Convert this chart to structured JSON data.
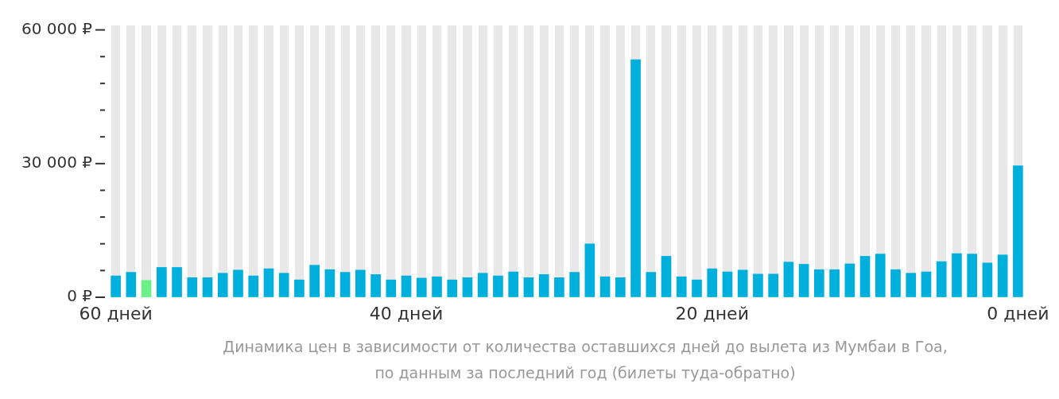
{
  "chart_data": {
    "type": "bar",
    "categories": [
      "60 дней",
      null,
      null,
      null,
      null,
      null,
      null,
      null,
      null,
      null,
      null,
      null,
      null,
      null,
      null,
      null,
      null,
      null,
      null,
      "40 дней",
      null,
      null,
      null,
      null,
      null,
      null,
      null,
      null,
      null,
      null,
      null,
      null,
      null,
      null,
      null,
      null,
      null,
      null,
      null,
      "20 дней",
      null,
      null,
      null,
      null,
      null,
      null,
      null,
      null,
      null,
      null,
      null,
      null,
      null,
      null,
      null,
      null,
      null,
      null,
      null,
      "0 дней"
    ],
    "series": [
      {
        "color": "#00b0dc",
        "colors": [
          null,
          null,
          "#6cf087",
          null,
          null,
          null,
          null,
          null,
          null,
          null,
          null,
          null,
          null,
          null,
          null,
          null,
          null,
          null,
          null,
          null,
          null,
          null,
          null,
          null,
          null,
          null,
          null,
          null,
          null,
          null,
          null,
          null,
          null,
          null,
          null,
          null,
          null,
          null,
          null,
          null,
          null,
          null,
          null,
          null,
          null,
          null,
          null,
          null,
          null,
          null,
          null,
          null,
          null,
          null,
          null,
          null,
          null,
          null,
          null,
          null
        ],
        "values": [
          4800,
          5600,
          3800,
          6700,
          6700,
          4400,
          4400,
          5400,
          6100,
          4800,
          6400,
          5400,
          3900,
          7200,
          6200,
          5600,
          6100,
          5100,
          3900,
          4800,
          4300,
          4600,
          3900,
          4400,
          5400,
          4800,
          5700,
          4400,
          5100,
          4400,
          5600,
          12000,
          4600,
          4400,
          53300,
          5600,
          9200,
          4600,
          3900,
          6400,
          5700,
          6100,
          5200,
          5200,
          7900,
          7400,
          6200,
          6200,
          7500,
          9200,
          9700,
          6200,
          5400,
          5700,
          8000,
          9800,
          9700,
          7700,
          9500,
          29500
        ]
      }
    ],
    "ylim": [
      0,
      61000
    ],
    "yticks": [
      {
        "value": 0,
        "label": "0 ₽"
      },
      {
        "value": 6000,
        "label": null
      },
      {
        "value": 12000,
        "label": null
      },
      {
        "value": 18000,
        "label": null
      },
      {
        "value": 24000,
        "label": null
      },
      {
        "value": 30000,
        "label": "30 000 ₽"
      },
      {
        "value": 36000,
        "label": null
      },
      {
        "value": 42000,
        "label": null
      },
      {
        "value": 48000,
        "label": null
      },
      {
        "value": 54000,
        "label": null
      },
      {
        "value": 60000,
        "label": "60 000 ₽"
      }
    ],
    "grid": "x",
    "legend": false,
    "annotations": [
      "Динамика цен в зависимости от количества оставшихся дней до вылета из Мумбаи в Гоа,",
      "по данным за последний год (билеты туда-обратно)"
    ]
  }
}
